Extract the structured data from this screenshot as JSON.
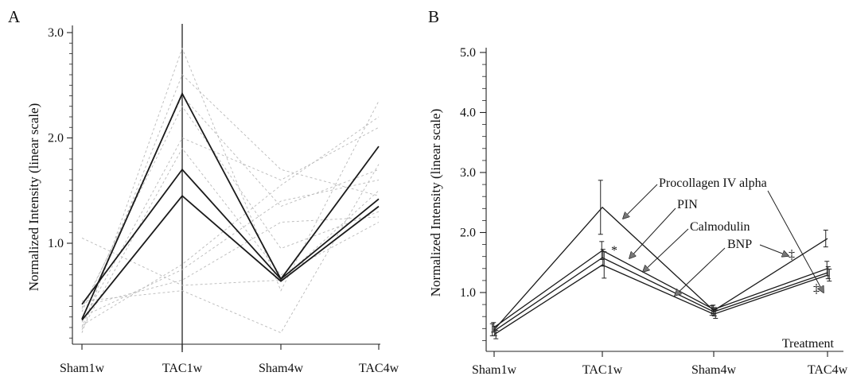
{
  "chart_data": [
    {
      "panel": "A",
      "type": "line",
      "ylabel": "Normalized Intensity (linear scale)",
      "xlabel": "",
      "categories": [
        "Sham1w",
        "TAC1w",
        "Sham4w",
        "TAC4w"
      ],
      "yticks": [
        "1.0",
        "2.0",
        "3.0"
      ],
      "ylim": [
        0.05,
        3.1
      ],
      "grid": false,
      "cursor_at": "TAC1w",
      "series": [
        {
          "style": "highlight",
          "values": [
            0.28,
            2.42,
            0.66,
            1.92
          ]
        },
        {
          "style": "highlight",
          "values": [
            0.42,
            1.7,
            0.66,
            1.42
          ]
        },
        {
          "style": "highlight",
          "values": [
            0.27,
            1.45,
            0.64,
            1.35
          ]
        },
        {
          "style": "faint",
          "values": [
            0.15,
            2.85,
            0.55,
            2.35
          ]
        },
        {
          "style": "faint",
          "values": [
            0.2,
            2.6,
            1.7,
            1.45
          ]
        },
        {
          "style": "faint",
          "values": [
            0.35,
            2.4,
            1.35,
            1.7
          ]
        },
        {
          "style": "faint",
          "values": [
            0.25,
            2.0,
            1.6,
            2.1
          ]
        },
        {
          "style": "faint",
          "values": [
            0.18,
            1.9,
            0.7,
            1.2
          ]
        },
        {
          "style": "faint",
          "values": [
            0.3,
            0.75,
            1.4,
            1.6
          ]
        },
        {
          "style": "faint",
          "values": [
            0.4,
            0.65,
            1.2,
            1.25
          ]
        },
        {
          "style": "faint",
          "values": [
            0.45,
            0.55,
            0.15,
            1.75
          ]
        },
        {
          "style": "faint",
          "values": [
            0.22,
            0.8,
            1.55,
            2.2
          ]
        },
        {
          "style": "faint",
          "values": [
            0.38,
            2.3,
            0.95,
            1.3
          ]
        },
        {
          "style": "faint",
          "values": [
            1.05,
            0.6,
            0.65,
            1.5
          ]
        }
      ]
    },
    {
      "panel": "B",
      "type": "line",
      "ylabel": "Normalized Intensity (linear scale)",
      "xlabel": "Treatment",
      "categories": [
        "Sham1w",
        "TAC1w",
        "Sham4w",
        "TAC4w"
      ],
      "yticks": [
        "1.0",
        "2.0",
        "3.0",
        "4.0",
        "5.0"
      ],
      "ylim": [
        0.1,
        5.2
      ],
      "grid": false,
      "series": [
        {
          "name": "Procollagen IV alpha",
          "values": [
            0.38,
            2.42,
            0.7,
            1.9
          ],
          "error": [
            0.1,
            0.45,
            0.08,
            0.14
          ]
        },
        {
          "name": "PIN",
          "values": [
            0.42,
            1.7,
            0.72,
            1.4
          ],
          "error": [
            0.08,
            0.15,
            0.07,
            0.12
          ]
        },
        {
          "name": "Calmodulin",
          "values": [
            0.36,
            1.58,
            0.68,
            1.33
          ],
          "error": [
            0.08,
            0.14,
            0.07,
            0.1
          ]
        },
        {
          "name": "BNP",
          "values": [
            0.3,
            1.46,
            0.64,
            1.29
          ],
          "error": [
            0.07,
            0.22,
            0.07,
            0.1
          ]
        }
      ],
      "annotations": {
        "star": "*",
        "dagger": "‡"
      }
    }
  ]
}
